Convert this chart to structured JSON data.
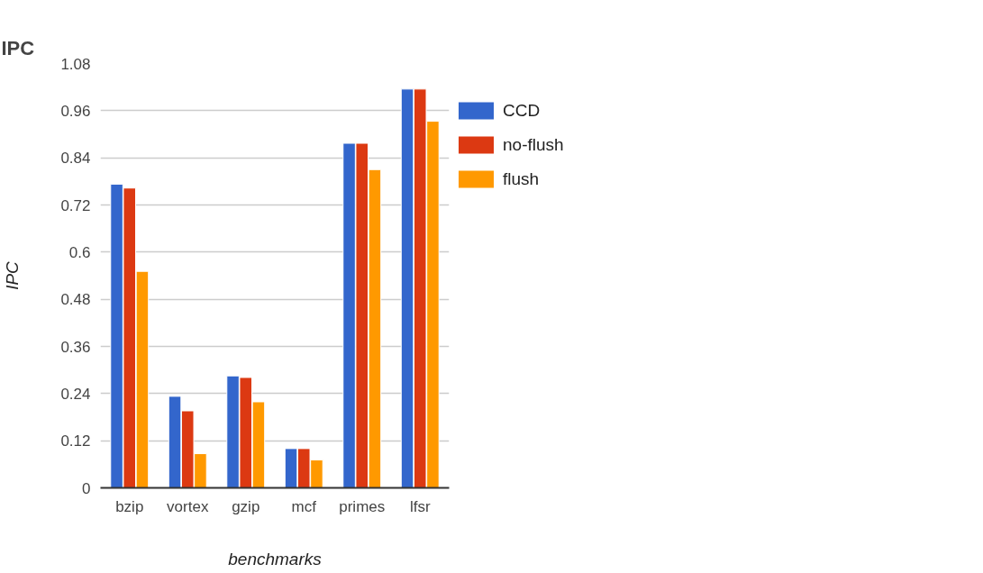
{
  "chart_data": {
    "type": "bar",
    "title": "IPC",
    "xlabel": "benchmarks",
    "ylabel": "IPC",
    "categories": [
      "bzip",
      "vortex",
      "gzip",
      "mcf",
      "primes",
      "lfsr"
    ],
    "series": [
      {
        "name": "CCD",
        "color": "#3366cc",
        "values": [
          0.773,
          0.233,
          0.285,
          0.1,
          0.877,
          1.015
        ]
      },
      {
        "name": "no-flush",
        "color": "#dc3912",
        "values": [
          0.763,
          0.196,
          0.281,
          0.1,
          0.877,
          1.015
        ]
      },
      {
        "name": "flush",
        "color": "#ff9900",
        "values": [
          0.551,
          0.087,
          0.219,
          0.071,
          0.81,
          0.933
        ]
      }
    ],
    "ylim": [
      0,
      1.08
    ],
    "yticks": [
      0,
      0.12,
      0.24,
      0.36,
      0.48,
      0.6,
      0.72,
      0.84,
      0.96,
      1.08
    ],
    "grid": "y",
    "legend": "top right"
  }
}
